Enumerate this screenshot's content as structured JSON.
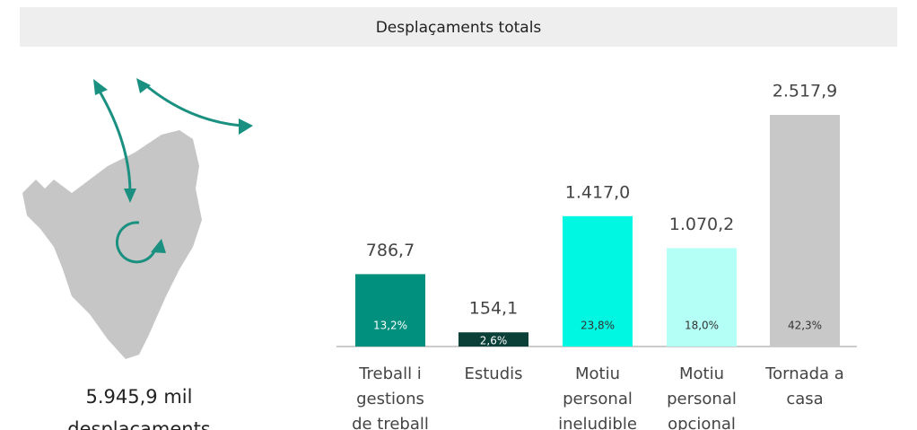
{
  "chart_data": {
    "type": "bar",
    "title": "Desplaçaments totals",
    "categories": [
      [
        "Treball i",
        "gestions",
        "de treball"
      ],
      [
        "Estudis"
      ],
      [
        "Motiu",
        "personal",
        "ineludible"
      ],
      [
        "Motiu",
        "personal",
        "opcional"
      ],
      [
        "Tornada a",
        "casa"
      ]
    ],
    "values": [
      786.7,
      154.1,
      1417.0,
      1070.2,
      2517.9
    ],
    "value_labels": [
      "786,7",
      "154,1",
      "1.417,0",
      "1.070,2",
      "2.517,9"
    ],
    "colors": [
      "#00907d",
      "#0a4038",
      "#00f7e2",
      "#b4fff6",
      "#c8c8c8"
    ],
    "shares": [
      13.2,
      2.6,
      23.8,
      18.0,
      42.3
    ],
    "share_labels": [
      "13,2%",
      "2,6%",
      "23,8%",
      "18,0%",
      "42,3%"
    ],
    "share_label_colors": [
      "#ffffff",
      "#ffffff",
      "#333333",
      "#333333",
      "#333333"
    ],
    "total": [
      "5.945,9 mil",
      "desplaçaments"
    ]
  }
}
